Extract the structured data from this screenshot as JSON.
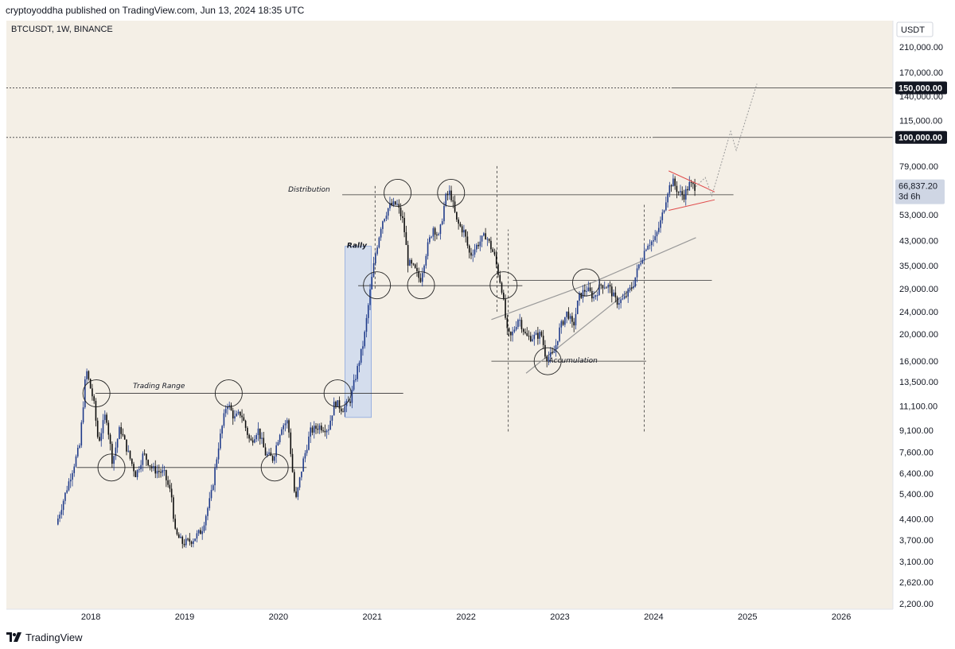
{
  "header": {
    "text": "cryptoyoddha published on TradingView.com, Jun 13, 2024 18:35 UTC"
  },
  "footer": {
    "brand": "TradingView"
  },
  "colors": {
    "background": "#f4efe6",
    "axis_bg": "#ffffff",
    "up_candle": "#1e3a8a",
    "down_candle": "#0b0b0b",
    "rally_box": "#b9cdf2",
    "rally_text": "#2962ff",
    "wedge": "#e04b4b"
  },
  "chart_data": {
    "type": "candlestick",
    "symbol_label": "BTCUSDT, 1W, BINANCE",
    "currency_label": "USDT",
    "scale": "log",
    "ylim": [
      2100,
      260000
    ],
    "xlim": [
      2017.1,
      2026.55
    ],
    "x_ticks": [
      {
        "x": 2018,
        "label": "2018"
      },
      {
        "x": 2019,
        "label": "2019"
      },
      {
        "x": 2020,
        "label": "2020"
      },
      {
        "x": 2021,
        "label": "2021"
      },
      {
        "x": 2022,
        "label": "2022"
      },
      {
        "x": 2023,
        "label": "2023"
      },
      {
        "x": 2024,
        "label": "2024"
      },
      {
        "x": 2025,
        "label": "2025"
      },
      {
        "x": 2026,
        "label": "2026"
      }
    ],
    "y_ticks": [
      {
        "value": 210000,
        "label": "210,000.00"
      },
      {
        "value": 170000,
        "label": "170,000.00"
      },
      {
        "value": 140000,
        "label": "140,000.00"
      },
      {
        "value": 115000,
        "label": "115,000.00"
      },
      {
        "value": 79000,
        "label": "79,000.00"
      },
      {
        "value": 53000,
        "label": "53,000.00"
      },
      {
        "value": 43000,
        "label": "43,000.00"
      },
      {
        "value": 35000,
        "label": "35,000.00"
      },
      {
        "value": 29000,
        "label": "29,000.00"
      },
      {
        "value": 24000,
        "label": "24,000.00"
      },
      {
        "value": 20000,
        "label": "20,000.00"
      },
      {
        "value": 16000,
        "label": "16,000.00"
      },
      {
        "value": 13500,
        "label": "13,500.00"
      },
      {
        "value": 11100,
        "label": "11,100.00"
      },
      {
        "value": 9100,
        "label": "9,100.00"
      },
      {
        "value": 7600,
        "label": "7,600.00"
      },
      {
        "value": 6400,
        "label": "6,400.00"
      },
      {
        "value": 5400,
        "label": "5,400.00"
      },
      {
        "value": 4400,
        "label": "4,400.00"
      },
      {
        "value": 3700,
        "label": "3,700.00"
      },
      {
        "value": 3100,
        "label": "3,100.00"
      },
      {
        "value": 2620,
        "label": "2,620.00"
      },
      {
        "value": 2200,
        "label": "2,200.00"
      }
    ],
    "marked_levels": [
      {
        "value": 150000,
        "label": "150,000.00"
      },
      {
        "value": 100000,
        "label": "100,000.00"
      }
    ],
    "last_price": {
      "value": 66837.2,
      "label": "66,837.20",
      "countdown": "3d 6h"
    },
    "series": [
      {
        "t": 2017.65,
        "p": 4200
      },
      {
        "t": 2017.8,
        "p": 6200
      },
      {
        "t": 2017.9,
        "p": 8000
      },
      {
        "t": 2017.97,
        "p": 15000
      },
      {
        "t": 2018.0,
        "p": 13500
      },
      {
        "t": 2018.05,
        "p": 11500
      },
      {
        "t": 2018.1,
        "p": 8200
      },
      {
        "t": 2018.18,
        "p": 10500
      },
      {
        "t": 2018.25,
        "p": 7000
      },
      {
        "t": 2018.33,
        "p": 9300
      },
      {
        "t": 2018.42,
        "p": 7500
      },
      {
        "t": 2018.5,
        "p": 6300
      },
      {
        "t": 2018.58,
        "p": 7500
      },
      {
        "t": 2018.68,
        "p": 6600
      },
      {
        "t": 2018.8,
        "p": 6400
      },
      {
        "t": 2018.88,
        "p": 5300
      },
      {
        "t": 2018.92,
        "p": 3900
      },
      {
        "t": 2019.0,
        "p": 3600
      },
      {
        "t": 2019.1,
        "p": 3700
      },
      {
        "t": 2019.2,
        "p": 4000
      },
      {
        "t": 2019.3,
        "p": 5300
      },
      {
        "t": 2019.38,
        "p": 8000
      },
      {
        "t": 2019.47,
        "p": 11500
      },
      {
        "t": 2019.55,
        "p": 10000
      },
      {
        "t": 2019.62,
        "p": 10500
      },
      {
        "t": 2019.72,
        "p": 8200
      },
      {
        "t": 2019.8,
        "p": 9200
      },
      {
        "t": 2019.88,
        "p": 7500
      },
      {
        "t": 2019.96,
        "p": 7200
      },
      {
        "t": 2020.05,
        "p": 9400
      },
      {
        "t": 2020.12,
        "p": 9800
      },
      {
        "t": 2020.2,
        "p": 5000
      },
      {
        "t": 2020.28,
        "p": 7000
      },
      {
        "t": 2020.36,
        "p": 9000
      },
      {
        "t": 2020.45,
        "p": 9400
      },
      {
        "t": 2020.55,
        "p": 9200
      },
      {
        "t": 2020.62,
        "p": 11500
      },
      {
        "t": 2020.7,
        "p": 10800
      },
      {
        "t": 2020.78,
        "p": 11500
      },
      {
        "t": 2020.86,
        "p": 15000
      },
      {
        "t": 2020.93,
        "p": 19000
      },
      {
        "t": 2021.0,
        "p": 29000
      },
      {
        "t": 2021.05,
        "p": 38000
      },
      {
        "t": 2021.12,
        "p": 50000
      },
      {
        "t": 2021.2,
        "p": 57000
      },
      {
        "t": 2021.28,
        "p": 58000
      },
      {
        "t": 2021.35,
        "p": 50000
      },
      {
        "t": 2021.4,
        "p": 36000
      },
      {
        "t": 2021.47,
        "p": 34000
      },
      {
        "t": 2021.53,
        "p": 31000
      },
      {
        "t": 2021.6,
        "p": 40000
      },
      {
        "t": 2021.67,
        "p": 48000
      },
      {
        "t": 2021.73,
        "p": 44000
      },
      {
        "t": 2021.8,
        "p": 61000
      },
      {
        "t": 2021.85,
        "p": 64000
      },
      {
        "t": 2021.92,
        "p": 50000
      },
      {
        "t": 2022.0,
        "p": 46000
      },
      {
        "t": 2022.06,
        "p": 38000
      },
      {
        "t": 2022.15,
        "p": 42000
      },
      {
        "t": 2022.23,
        "p": 45000
      },
      {
        "t": 2022.32,
        "p": 38000
      },
      {
        "t": 2022.4,
        "p": 29000
      },
      {
        "t": 2022.46,
        "p": 20000
      },
      {
        "t": 2022.5,
        "p": 19500
      },
      {
        "t": 2022.58,
        "p": 23000
      },
      {
        "t": 2022.66,
        "p": 19500
      },
      {
        "t": 2022.74,
        "p": 19500
      },
      {
        "t": 2022.82,
        "p": 20000
      },
      {
        "t": 2022.87,
        "p": 16500
      },
      {
        "t": 2022.95,
        "p": 16800
      },
      {
        "t": 2023.02,
        "p": 21000
      },
      {
        "t": 2023.1,
        "p": 24000
      },
      {
        "t": 2023.16,
        "p": 21000
      },
      {
        "t": 2023.22,
        "p": 27000
      },
      {
        "t": 2023.3,
        "p": 29000
      },
      {
        "t": 2023.38,
        "p": 27000
      },
      {
        "t": 2023.46,
        "p": 30000
      },
      {
        "t": 2023.54,
        "p": 29500
      },
      {
        "t": 2023.62,
        "p": 26000
      },
      {
        "t": 2023.7,
        "p": 26500
      },
      {
        "t": 2023.8,
        "p": 30000
      },
      {
        "t": 2023.86,
        "p": 35000
      },
      {
        "t": 2023.95,
        "p": 42000
      },
      {
        "t": 2024.03,
        "p": 43000
      },
      {
        "t": 2024.1,
        "p": 51000
      },
      {
        "t": 2024.17,
        "p": 65000
      },
      {
        "t": 2024.22,
        "p": 70000
      },
      {
        "t": 2024.28,
        "p": 64000
      },
      {
        "t": 2024.34,
        "p": 62000
      },
      {
        "t": 2024.4,
        "p": 68000
      },
      {
        "t": 2024.45,
        "p": 66837
      }
    ],
    "annotations": {
      "labels": [
        {
          "text": "Distribution",
          "x": 2020.55,
          "y": 62500
        },
        {
          "text": "Rally",
          "x": 2020.73,
          "y": 40500
        },
        {
          "text": "Trading Range",
          "x": 2018.45,
          "y": 12500
        },
        {
          "text": "Accumulation",
          "x": 2022.88,
          "y": 15400
        }
      ],
      "horizontal_lines": [
        {
          "from": 2020.68,
          "to": 2024.85,
          "y": 62500
        },
        {
          "from": 2020.85,
          "to": 2022.6,
          "y": 29700
        },
        {
          "from": 2022.5,
          "to": 2024.62,
          "y": 31000
        },
        {
          "from": 2022.27,
          "to": 2023.92,
          "y": 16000
        },
        {
          "from": 2018.05,
          "to": 2021.33,
          "y": 12300
        },
        {
          "from": 2017.85,
          "to": 2020.3,
          "y": 6700
        },
        {
          "from": 2024.19,
          "to": 2026.55,
          "y": 150000
        },
        {
          "from": 2024.0,
          "to": 2026.55,
          "y": 100000
        }
      ],
      "dotted_levels": [
        {
          "from": 2017.1,
          "to": 2024.19,
          "y": 150000
        },
        {
          "from": 2017.1,
          "to": 2024.0,
          "y": 100000
        }
      ],
      "vertical_dashed": [
        {
          "x": 2021.03,
          "y1": 29000,
          "y2": 68000
        },
        {
          "x": 2022.33,
          "y1": 24000,
          "y2": 80000
        },
        {
          "x": 2022.45,
          "y1": 9000,
          "y2": 47000
        },
        {
          "x": 2023.9,
          "y1": 9000,
          "y2": 58000
        }
      ],
      "trend_lines": [
        {
          "x1": 2022.27,
          "y1": 22500,
          "x2": 2023.35,
          "y2": 30500
        },
        {
          "x1": 2023.35,
          "y1": 30500,
          "x2": 2024.45,
          "y2": 44000
        },
        {
          "x1": 2022.64,
          "y1": 14500,
          "x2": 2023.82,
          "y2": 30000
        }
      ],
      "wedge_lines": [
        {
          "x1": 2024.16,
          "y1": 76000,
          "x2": 2024.65,
          "y2": 64000
        },
        {
          "x1": 2024.16,
          "y1": 55000,
          "x2": 2024.65,
          "y2": 60000
        }
      ],
      "projection": [
        {
          "x": 2024.45,
          "y": 66837
        },
        {
          "x": 2024.55,
          "y": 72000
        },
        {
          "x": 2024.62,
          "y": 62000
        },
        {
          "x": 2024.82,
          "y": 105000
        },
        {
          "x": 2024.88,
          "y": 90000
        },
        {
          "x": 2025.1,
          "y": 155000
        }
      ],
      "circles": [
        {
          "x": 2018.06,
          "y": 12300
        },
        {
          "x": 2018.22,
          "y": 6700
        },
        {
          "x": 2019.47,
          "y": 12300
        },
        {
          "x": 2019.96,
          "y": 6700
        },
        {
          "x": 2020.63,
          "y": 12300
        },
        {
          "x": 2021.05,
          "y": 29800
        },
        {
          "x": 2021.52,
          "y": 29800
        },
        {
          "x": 2021.27,
          "y": 63500
        },
        {
          "x": 2021.84,
          "y": 63500
        },
        {
          "x": 2022.4,
          "y": 29800
        },
        {
          "x": 2022.87,
          "y": 16000
        },
        {
          "x": 2023.28,
          "y": 30500
        }
      ],
      "rally_box": {
        "x1": 2020.71,
        "x2": 2020.99,
        "y1": 10100,
        "y2": 41000
      }
    }
  }
}
